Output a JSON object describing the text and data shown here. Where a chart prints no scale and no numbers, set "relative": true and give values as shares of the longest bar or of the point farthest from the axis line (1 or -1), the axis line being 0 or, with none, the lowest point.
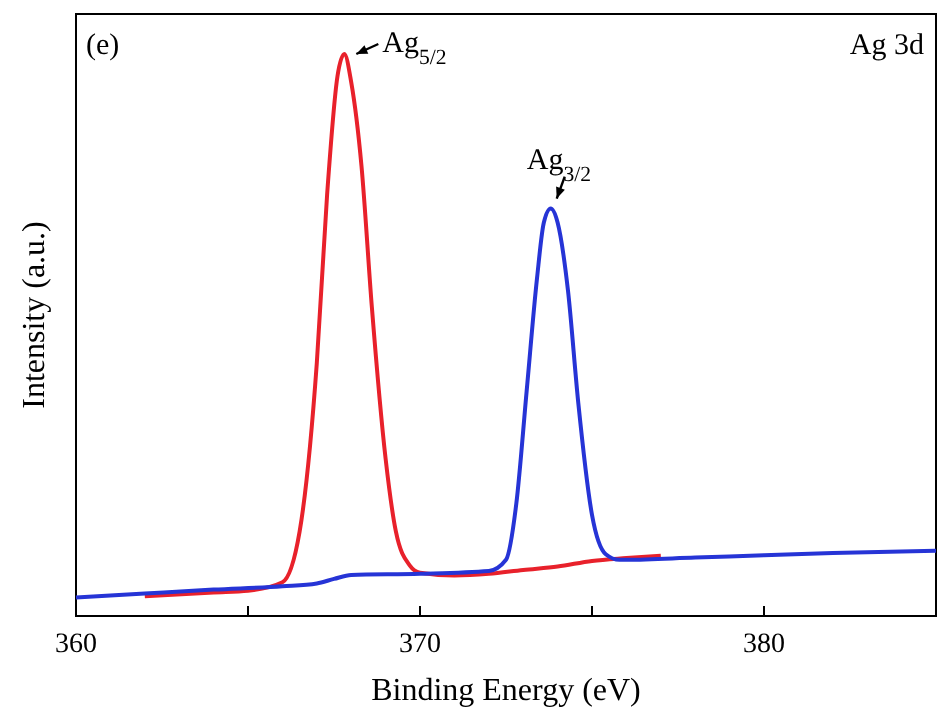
{
  "chart_data": {
    "type": "line",
    "relative": true,
    "xlabel": "Binding Energy (eV)",
    "ylabel": "Intensity (a.u.)",
    "xlim": [
      360,
      385
    ],
    "xticks": [
      360,
      {
        "value": 365,
        "label": null
      },
      370,
      {
        "value": 375,
        "label": null
      },
      380
    ],
    "grid": false,
    "line_style": "solid",
    "annotations": [
      "(e)",
      "Ag 3d",
      {
        "text": "Ag$_{5/2}$",
        "x": 367.8,
        "y": 1
      },
      {
        "text": "Ag$_{3/2}$",
        "x": 373.8,
        "y": 0.725
      }
    ],
    "series": [
      {
        "color": "#e8212b",
        "x": [
          362,
          364,
          365,
          366,
          366.5,
          367,
          367.3,
          367.6,
          367.8,
          368,
          368.3,
          368.6,
          369,
          369.3,
          369.7,
          370,
          371,
          372,
          373,
          374,
          375,
          376,
          377
        ],
        "values": [
          0.035,
          0.042,
          0.045,
          0.06,
          0.15,
          0.45,
          0.75,
          0.96,
          1,
          0.95,
          0.8,
          0.55,
          0.28,
          0.15,
          0.09,
          0.077,
          0.072,
          0.075,
          0.082,
          0.088,
          0.098,
          0.103,
          0.107
        ]
      },
      {
        "color": "#2634d6",
        "x": [
          360,
          362,
          364,
          366,
          367,
          367.5,
          368,
          370,
          372,
          372.5,
          372.8,
          373.1,
          373.4,
          373.6,
          373.8,
          374,
          374.3,
          374.6,
          375,
          375.4,
          375.8,
          376,
          378,
          380,
          382,
          385
        ],
        "values": [
          0.033,
          0.04,
          0.047,
          0.053,
          0.058,
          0.066,
          0.073,
          0.075,
          0.08,
          0.1,
          0.2,
          0.4,
          0.6,
          0.7,
          0.725,
          0.7,
          0.58,
          0.38,
          0.18,
          0.11,
          0.1,
          0.1,
          0.104,
          0.108,
          0.112,
          0.116
        ]
      }
    ]
  }
}
